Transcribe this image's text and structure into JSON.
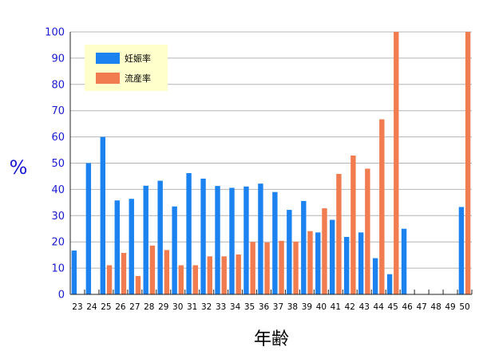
{
  "chart_data": {
    "type": "bar",
    "ylabel": "%",
    "xlabel": "年齢",
    "ylim": [
      0,
      100
    ],
    "yticks": [
      "0",
      "10",
      "20",
      "30",
      "40",
      "50",
      "60",
      "70",
      "80",
      "90",
      "100"
    ],
    "grid": true,
    "legend_position": "top-left",
    "categories": [
      "23",
      "24",
      "25",
      "26",
      "27",
      "28",
      "29",
      "30",
      "31",
      "32",
      "33",
      "34",
      "35",
      "36",
      "37",
      "38",
      "39",
      "40",
      "41",
      "42",
      "43",
      "44",
      "45",
      "46",
      "47",
      "48",
      "49",
      "50"
    ],
    "series": [
      {
        "name": "妊娠率",
        "color": "#1b82f0",
        "values": [
          16.7,
          50,
          60,
          35.8,
          36.4,
          41.4,
          43.3,
          33.5,
          46.2,
          44.1,
          41.3,
          40.6,
          41.1,
          42.2,
          39,
          32.2,
          35.6,
          23.6,
          28.4,
          21.9,
          23.6,
          13.8,
          7.7,
          25,
          0,
          0,
          0,
          33.3
        ]
      },
      {
        "name": "流産率",
        "color": "#f07c50",
        "values": [
          0,
          0,
          11.1,
          15.8,
          7,
          18.6,
          16.9,
          11.1,
          11.1,
          14.5,
          14.5,
          15.2,
          20,
          19.8,
          20.4,
          20.1,
          24.1,
          32.8,
          45.9,
          52.9,
          47.9,
          66.7,
          100,
          0,
          0,
          0,
          0,
          100
        ]
      }
    ]
  }
}
